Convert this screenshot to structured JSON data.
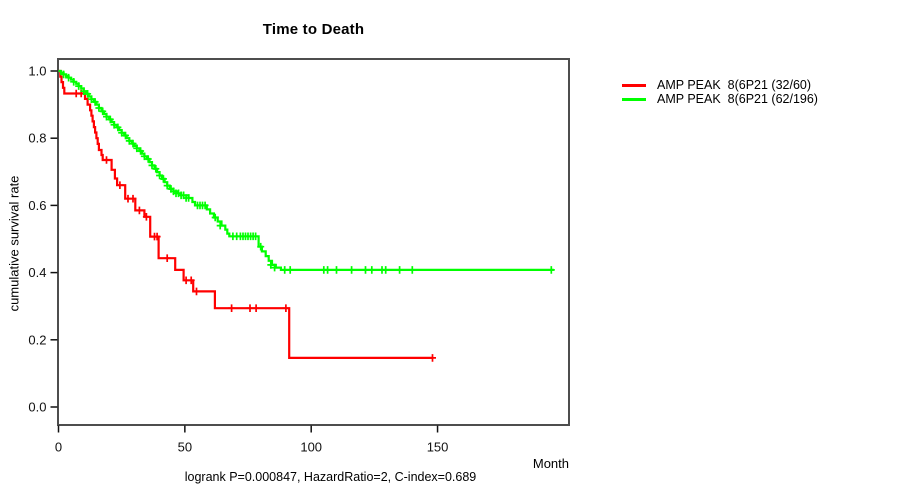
{
  "title": "Time to Death",
  "chart_data": {
    "type": "line",
    "subtype": "kaplan-meier-step-curve",
    "title": "Time to Death",
    "xlabel": "Month",
    "ylabel": "cumulative survival rate",
    "annotation": "logrank P=0.000847, HazardRatio=2, C-index=0.689",
    "xlim": [
      0,
      202
    ],
    "ylim": [
      0,
      1.04
    ],
    "x_ticks": [
      0,
      50,
      100,
      150
    ],
    "y_tick_labels": [
      "0.0",
      "0.2",
      "0.4",
      "0.6",
      "0.8",
      "1.0"
    ],
    "grid": false,
    "legend_position": "right-outside",
    "series": [
      {
        "name": "AMP PEAK  8(6P21 (32/60)",
        "color": "#ff0000",
        "events_over_n": "32/60",
        "end_month": 148.3,
        "steps": [
          [
            0,
            1.0
          ],
          [
            0.7,
            0.983
          ],
          [
            1.2,
            0.967
          ],
          [
            1.8,
            0.95
          ],
          [
            2.3,
            0.933
          ],
          [
            10.5,
            0.917
          ],
          [
            11.5,
            0.9
          ],
          [
            12.5,
            0.883
          ],
          [
            13,
            0.867
          ],
          [
            13.5,
            0.85
          ],
          [
            14,
            0.833
          ],
          [
            14.5,
            0.817
          ],
          [
            15,
            0.8
          ],
          [
            15.5,
            0.783
          ],
          [
            16,
            0.765
          ],
          [
            17,
            0.75
          ],
          [
            17.5,
            0.735
          ],
          [
            21,
            0.706
          ],
          [
            22.3,
            0.68
          ],
          [
            23.2,
            0.66
          ],
          [
            26.4,
            0.62
          ],
          [
            30.4,
            0.585
          ],
          [
            34,
            0.566
          ],
          [
            36.3,
            0.507
          ],
          [
            39.6,
            0.443
          ],
          [
            46.2,
            0.408
          ],
          [
            49.5,
            0.377
          ],
          [
            53.3,
            0.344
          ],
          [
            61.9,
            0.294
          ],
          [
            91.3,
            0.146
          ]
        ],
        "censors": [
          [
            7,
            0.933
          ],
          [
            9,
            0.933
          ],
          [
            19,
            0.735
          ],
          [
            24.3,
            0.66
          ],
          [
            27.5,
            0.62
          ],
          [
            29.5,
            0.62
          ],
          [
            32,
            0.585
          ],
          [
            34.8,
            0.566
          ],
          [
            38,
            0.507
          ],
          [
            39,
            0.507
          ],
          [
            43,
            0.443
          ],
          [
            50.5,
            0.377
          ],
          [
            52.5,
            0.377
          ],
          [
            54.6,
            0.344
          ],
          [
            68.5,
            0.294
          ],
          [
            75.8,
            0.294
          ],
          [
            78.2,
            0.294
          ],
          [
            90,
            0.294
          ],
          [
            148,
            0.146
          ]
        ]
      },
      {
        "name": "AMP PEAK  8(6P21 (62/196)",
        "color": "#00ff00",
        "events_over_n": "62/196",
        "end_month": 196,
        "steps": [
          [
            0,
            1.0
          ],
          [
            1,
            0.995
          ],
          [
            2,
            0.99
          ],
          [
            3,
            0.985
          ],
          [
            4,
            0.98
          ],
          [
            5,
            0.974
          ],
          [
            6,
            0.968
          ],
          [
            7,
            0.962
          ],
          [
            8,
            0.955
          ],
          [
            9,
            0.948
          ],
          [
            10,
            0.94
          ],
          [
            11,
            0.932
          ],
          [
            12,
            0.924
          ],
          [
            13,
            0.916
          ],
          [
            14,
            0.908
          ],
          [
            15,
            0.9
          ],
          [
            16,
            0.89
          ],
          [
            17,
            0.88
          ],
          [
            18,
            0.872
          ],
          [
            19,
            0.864
          ],
          [
            20,
            0.856
          ],
          [
            21,
            0.848
          ],
          [
            22,
            0.84
          ],
          [
            23,
            0.832
          ],
          [
            24,
            0.824
          ],
          [
            25,
            0.816
          ],
          [
            26,
            0.808
          ],
          [
            27,
            0.8
          ],
          [
            28,
            0.792
          ],
          [
            29,
            0.784
          ],
          [
            30,
            0.777
          ],
          [
            31,
            0.77
          ],
          [
            32,
            0.762
          ],
          [
            33,
            0.754
          ],
          [
            34,
            0.746
          ],
          [
            35,
            0.738
          ],
          [
            36,
            0.729
          ],
          [
            37,
            0.719
          ],
          [
            38,
            0.709
          ],
          [
            39,
            0.699
          ],
          [
            40,
            0.689
          ],
          [
            41,
            0.679
          ],
          [
            42,
            0.669
          ],
          [
            43,
            0.659
          ],
          [
            44,
            0.649
          ],
          [
            45.5,
            0.642
          ],
          [
            47,
            0.636
          ],
          [
            48.5,
            0.63
          ],
          [
            51.5,
            0.622
          ],
          [
            53,
            0.61
          ],
          [
            54,
            0.6
          ],
          [
            58.7,
            0.588
          ],
          [
            60,
            0.576
          ],
          [
            61.5,
            0.564
          ],
          [
            63,
            0.552
          ],
          [
            64.5,
            0.54
          ],
          [
            66,
            0.528
          ],
          [
            66.8,
            0.516
          ],
          [
            67.6,
            0.508
          ],
          [
            79.2,
            0.477
          ],
          [
            80.5,
            0.463
          ],
          [
            82,
            0.449
          ],
          [
            83.2,
            0.435
          ],
          [
            84.5,
            0.423
          ],
          [
            86,
            0.415
          ],
          [
            88,
            0.408
          ]
        ],
        "censors": [
          [
            2,
            0.99
          ],
          [
            4,
            0.98
          ],
          [
            6,
            0.968
          ],
          [
            8,
            0.955
          ],
          [
            10,
            0.94
          ],
          [
            11.5,
            0.932
          ],
          [
            13,
            0.916
          ],
          [
            14.5,
            0.908
          ],
          [
            16,
            0.89
          ],
          [
            17.5,
            0.88
          ],
          [
            19,
            0.864
          ],
          [
            20.5,
            0.856
          ],
          [
            22,
            0.84
          ],
          [
            23.5,
            0.832
          ],
          [
            25,
            0.816
          ],
          [
            26.5,
            0.808
          ],
          [
            28,
            0.792
          ],
          [
            29.5,
            0.784
          ],
          [
            31,
            0.77
          ],
          [
            32.5,
            0.762
          ],
          [
            34,
            0.746
          ],
          [
            35.5,
            0.738
          ],
          [
            37,
            0.719
          ],
          [
            38.5,
            0.709
          ],
          [
            40,
            0.689
          ],
          [
            41.5,
            0.679
          ],
          [
            43,
            0.659
          ],
          [
            44.5,
            0.649
          ],
          [
            45.5,
            0.642
          ],
          [
            46.5,
            0.636
          ],
          [
            47.5,
            0.636
          ],
          [
            48.5,
            0.63
          ],
          [
            49.5,
            0.63
          ],
          [
            50.5,
            0.622
          ],
          [
            51.5,
            0.622
          ],
          [
            55,
            0.6
          ],
          [
            56,
            0.6
          ],
          [
            57,
            0.6
          ],
          [
            58,
            0.6
          ],
          [
            62,
            0.564
          ],
          [
            64,
            0.54
          ],
          [
            69,
            0.508
          ],
          [
            70.5,
            0.508
          ],
          [
            72,
            0.508
          ],
          [
            73,
            0.508
          ],
          [
            74,
            0.508
          ],
          [
            75,
            0.508
          ],
          [
            76,
            0.508
          ],
          [
            77,
            0.508
          ],
          [
            78,
            0.508
          ],
          [
            80,
            0.477
          ],
          [
            84,
            0.423
          ],
          [
            85.5,
            0.415
          ],
          [
            89.5,
            0.408
          ],
          [
            91.7,
            0.408
          ],
          [
            105,
            0.408
          ],
          [
            106.5,
            0.408
          ],
          [
            110,
            0.408
          ],
          [
            116,
            0.408
          ],
          [
            121.5,
            0.408
          ],
          [
            124,
            0.408
          ],
          [
            128,
            0.408
          ],
          [
            129.5,
            0.408
          ],
          [
            135,
            0.408
          ],
          [
            140,
            0.408
          ],
          [
            195,
            0.408
          ]
        ]
      }
    ],
    "colors": {
      "series_red": "#ff0000",
      "series_green": "#00ff00",
      "box_border": "#4d4d4d",
      "text": "#111111"
    }
  }
}
